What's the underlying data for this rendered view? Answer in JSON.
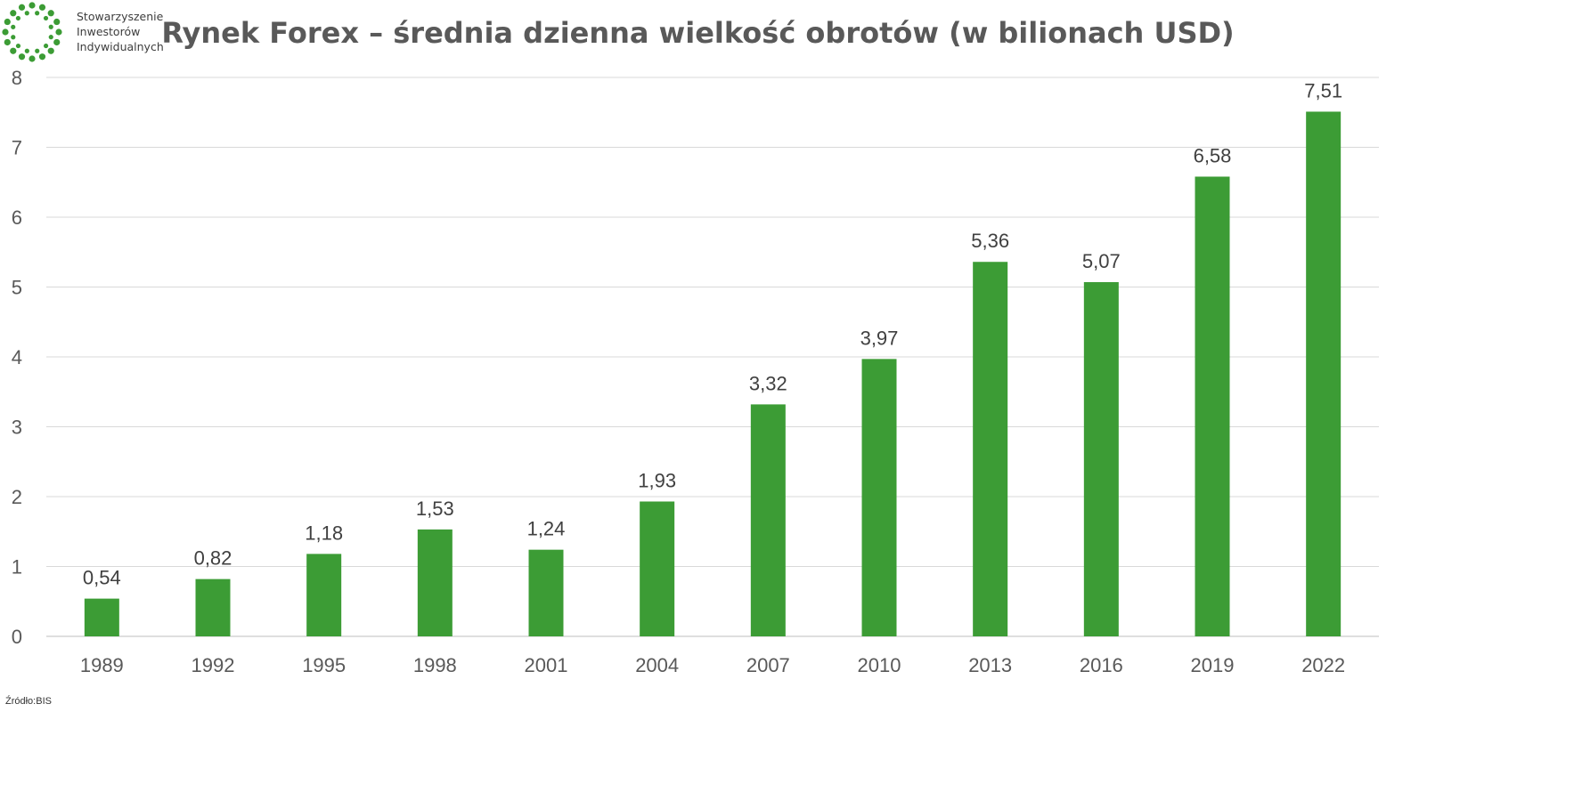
{
  "logo": {
    "name": "sii-logo",
    "lines": [
      "Stowarzyszenie",
      "Inwestorów",
      "Indywidualnych"
    ],
    "color": "#3c9c35"
  },
  "chart_data": {
    "type": "bar",
    "title": "Rynek Forex – średnia dzienna wielkość obrotów (w bilionach USD)",
    "categories": [
      "1989",
      "1992",
      "1995",
      "1998",
      "2001",
      "2004",
      "2007",
      "2010",
      "2013",
      "2016",
      "2019",
      "2022"
    ],
    "values": [
      0.54,
      0.82,
      1.18,
      1.53,
      1.24,
      1.93,
      3.32,
      3.97,
      5.36,
      5.07,
      6.58,
      7.51
    ],
    "data_labels": [
      "0,54",
      "0,82",
      "1,18",
      "1,53",
      "1,24",
      "1,93",
      "3,32",
      "3,97",
      "5,36",
      "5,07",
      "6,58",
      "7,51"
    ],
    "ylim": [
      0,
      8
    ],
    "yticks": [
      "0",
      "1",
      "2",
      "3",
      "4",
      "5",
      "6",
      "7",
      "8"
    ],
    "grid": true,
    "bar_color": "#3c9c35",
    "xlabel": "",
    "ylabel": ""
  },
  "source": "Źródło:BIS"
}
